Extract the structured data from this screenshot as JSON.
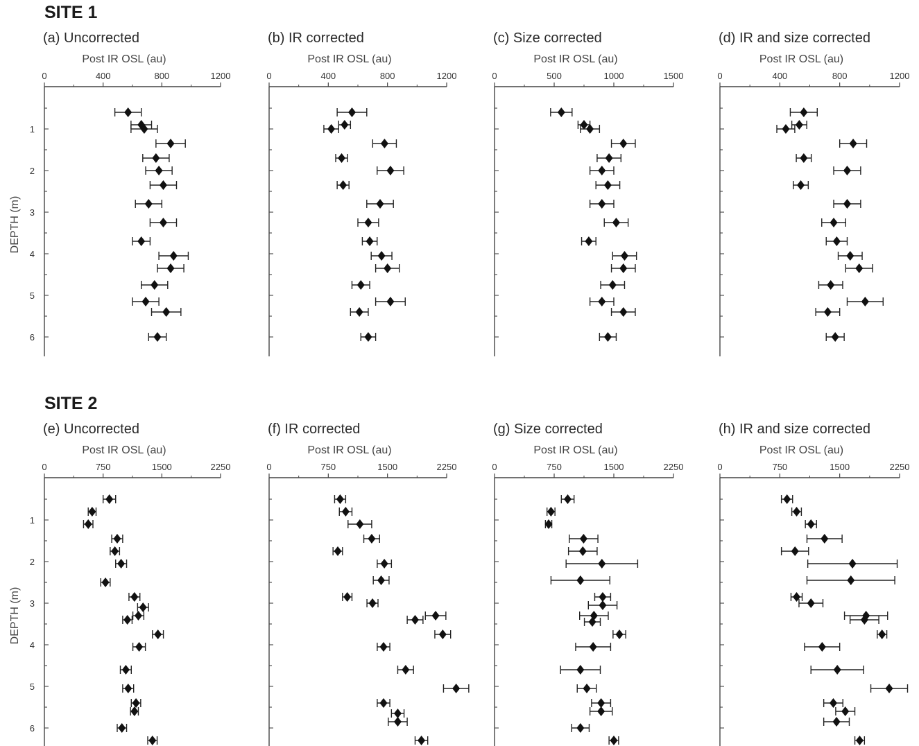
{
  "sites": [
    {
      "title": "SITE 1"
    },
    {
      "title": "SITE 2"
    }
  ],
  "chart_data": [
    {
      "type": "scatter",
      "site": "SITE 1",
      "title": "(a) Uncorrected",
      "xlabel": "Post IR OSL (au)",
      "ylabel": "DEPTH (m)",
      "xlim": [
        0,
        1200
      ],
      "xticks": [
        0,
        400,
        800,
        1200
      ],
      "ylim": [
        0,
        6.3
      ],
      "yticks": [
        1,
        2,
        3,
        4,
        5,
        6
      ],
      "y_inverted": true,
      "points": [
        {
          "depth": 0.6,
          "value": 570,
          "err": 90
        },
        {
          "depth": 0.9,
          "value": 660,
          "err": 70
        },
        {
          "depth": 1.0,
          "value": 680,
          "err": 90
        },
        {
          "depth": 1.35,
          "value": 860,
          "err": 100
        },
        {
          "depth": 1.7,
          "value": 760,
          "err": 90
        },
        {
          "depth": 2.0,
          "value": 780,
          "err": 90
        },
        {
          "depth": 2.35,
          "value": 810,
          "err": 90
        },
        {
          "depth": 2.8,
          "value": 710,
          "err": 90
        },
        {
          "depth": 3.25,
          "value": 810,
          "err": 90
        },
        {
          "depth": 3.7,
          "value": 660,
          "err": 60
        },
        {
          "depth": 4.05,
          "value": 880,
          "err": 100
        },
        {
          "depth": 4.35,
          "value": 860,
          "err": 90
        },
        {
          "depth": 4.75,
          "value": 750,
          "err": 90
        },
        {
          "depth": 5.15,
          "value": 690,
          "err": 90
        },
        {
          "depth": 5.4,
          "value": 830,
          "err": 100
        },
        {
          "depth": 6.0,
          "value": 770,
          "err": 60
        }
      ]
    },
    {
      "type": "scatter",
      "site": "SITE 1",
      "title": "(b) IR corrected",
      "xlabel": "Post IR OSL (au)",
      "ylabel": "",
      "xlim": [
        0,
        1200
      ],
      "xticks": [
        0,
        400,
        800,
        1200
      ],
      "ylim": [
        0,
        6.3
      ],
      "yticks": [
        1,
        2,
        3,
        4,
        5,
        6
      ],
      "y_inverted": true,
      "points": [
        {
          "depth": 0.6,
          "value": 560,
          "err": 100
        },
        {
          "depth": 0.9,
          "value": 510,
          "err": 40
        },
        {
          "depth": 1.0,
          "value": 420,
          "err": 50
        },
        {
          "depth": 1.35,
          "value": 780,
          "err": 80
        },
        {
          "depth": 1.7,
          "value": 490,
          "err": 40
        },
        {
          "depth": 2.0,
          "value": 820,
          "err": 90
        },
        {
          "depth": 2.35,
          "value": 500,
          "err": 40
        },
        {
          "depth": 2.8,
          "value": 750,
          "err": 90
        },
        {
          "depth": 3.25,
          "value": 670,
          "err": 70
        },
        {
          "depth": 3.7,
          "value": 680,
          "err": 50
        },
        {
          "depth": 4.05,
          "value": 760,
          "err": 70
        },
        {
          "depth": 4.35,
          "value": 800,
          "err": 80
        },
        {
          "depth": 4.75,
          "value": 620,
          "err": 60
        },
        {
          "depth": 5.15,
          "value": 820,
          "err": 100
        },
        {
          "depth": 5.4,
          "value": 610,
          "err": 60
        },
        {
          "depth": 6.0,
          "value": 670,
          "err": 50
        }
      ]
    },
    {
      "type": "scatter",
      "site": "SITE 1",
      "title": "(c) Size corrected",
      "xlabel": "Post IR OSL (au)",
      "ylabel": "",
      "xlim": [
        0,
        1500
      ],
      "xticks": [
        0,
        500,
        1000,
        1500
      ],
      "ylim": [
        0,
        6.3
      ],
      "yticks": [
        1,
        2,
        3,
        4,
        5,
        6
      ],
      "y_inverted": true,
      "points": [
        {
          "depth": 0.6,
          "value": 560,
          "err": 90
        },
        {
          "depth": 0.9,
          "value": 750,
          "err": 50
        },
        {
          "depth": 1.0,
          "value": 800,
          "err": 80
        },
        {
          "depth": 1.35,
          "value": 1080,
          "err": 100
        },
        {
          "depth": 1.7,
          "value": 960,
          "err": 100
        },
        {
          "depth": 2.0,
          "value": 900,
          "err": 100
        },
        {
          "depth": 2.35,
          "value": 950,
          "err": 100
        },
        {
          "depth": 2.8,
          "value": 900,
          "err": 100
        },
        {
          "depth": 3.25,
          "value": 1020,
          "err": 100
        },
        {
          "depth": 3.7,
          "value": 790,
          "err": 60
        },
        {
          "depth": 4.05,
          "value": 1090,
          "err": 100
        },
        {
          "depth": 4.35,
          "value": 1080,
          "err": 100
        },
        {
          "depth": 4.75,
          "value": 990,
          "err": 100
        },
        {
          "depth": 5.15,
          "value": 900,
          "err": 100
        },
        {
          "depth": 5.4,
          "value": 1080,
          "err": 100
        },
        {
          "depth": 6.0,
          "value": 950,
          "err": 70
        }
      ]
    },
    {
      "type": "scatter",
      "site": "SITE 1",
      "title": "(d) IR and size corrected",
      "xlabel": "Post IR OSL (au)",
      "ylabel": "",
      "xlim": [
        0,
        1200
      ],
      "xticks": [
        0,
        400,
        800,
        1200
      ],
      "ylim": [
        0,
        6.3
      ],
      "yticks": [
        1,
        2,
        3,
        4,
        5,
        6
      ],
      "y_inverted": true,
      "points": [
        {
          "depth": 0.6,
          "value": 560,
          "err": 90
        },
        {
          "depth": 0.9,
          "value": 530,
          "err": 50
        },
        {
          "depth": 1.0,
          "value": 440,
          "err": 60
        },
        {
          "depth": 1.35,
          "value": 890,
          "err": 90
        },
        {
          "depth": 1.7,
          "value": 560,
          "err": 50
        },
        {
          "depth": 2.0,
          "value": 850,
          "err": 90
        },
        {
          "depth": 2.35,
          "value": 540,
          "err": 50
        },
        {
          "depth": 2.8,
          "value": 850,
          "err": 90
        },
        {
          "depth": 3.25,
          "value": 760,
          "err": 80
        },
        {
          "depth": 3.7,
          "value": 780,
          "err": 70
        },
        {
          "depth": 4.05,
          "value": 870,
          "err": 80
        },
        {
          "depth": 4.35,
          "value": 930,
          "err": 90
        },
        {
          "depth": 4.75,
          "value": 740,
          "err": 80
        },
        {
          "depth": 5.15,
          "value": 970,
          "err": 120
        },
        {
          "depth": 5.4,
          "value": 720,
          "err": 80
        },
        {
          "depth": 6.0,
          "value": 770,
          "err": 60
        }
      ]
    },
    {
      "type": "scatter",
      "site": "SITE 2",
      "title": "(e) Uncorrected",
      "xlabel": "Post IR OSL (au)",
      "ylabel": "DEPTH (m)",
      "xlim": [
        0,
        2250
      ],
      "xticks": [
        0,
        750,
        1500,
        2250
      ],
      "ylim": [
        0,
        6.3
      ],
      "yticks": [
        1,
        2,
        3,
        4,
        5,
        6
      ],
      "y_inverted": true,
      "points": [
        {
          "depth": 0.5,
          "value": 830,
          "err": 80
        },
        {
          "depth": 0.8,
          "value": 610,
          "err": 50
        },
        {
          "depth": 1.1,
          "value": 560,
          "err": 60
        },
        {
          "depth": 1.45,
          "value": 930,
          "err": 70
        },
        {
          "depth": 1.75,
          "value": 900,
          "err": 60
        },
        {
          "depth": 2.05,
          "value": 980,
          "err": 70
        },
        {
          "depth": 2.5,
          "value": 780,
          "err": 60
        },
        {
          "depth": 2.85,
          "value": 1150,
          "err": 70
        },
        {
          "depth": 3.1,
          "value": 1260,
          "err": 70
        },
        {
          "depth": 3.3,
          "value": 1200,
          "err": 70
        },
        {
          "depth": 3.4,
          "value": 1060,
          "err": 60
        },
        {
          "depth": 3.75,
          "value": 1450,
          "err": 70
        },
        {
          "depth": 4.05,
          "value": 1210,
          "err": 80
        },
        {
          "depth": 4.6,
          "value": 1040,
          "err": 70
        },
        {
          "depth": 5.05,
          "value": 1070,
          "err": 70
        },
        {
          "depth": 5.4,
          "value": 1170,
          "err": 60
        },
        {
          "depth": 5.6,
          "value": 1150,
          "err": 50
        },
        {
          "depth": 6.0,
          "value": 990,
          "err": 60
        },
        {
          "depth": 6.3,
          "value": 1380,
          "err": 60
        }
      ]
    },
    {
      "type": "scatter",
      "site": "SITE 2",
      "title": "(f) IR corrected",
      "xlabel": "Post IR OSL (au)",
      "ylabel": "",
      "xlim": [
        0,
        2250
      ],
      "xticks": [
        0,
        750,
        1500,
        2250
      ],
      "ylim": [
        0,
        6.3
      ],
      "yticks": [
        1,
        2,
        3,
        4,
        5,
        6
      ],
      "y_inverted": true,
      "points": [
        {
          "depth": 0.5,
          "value": 900,
          "err": 70
        },
        {
          "depth": 0.8,
          "value": 970,
          "err": 80
        },
        {
          "depth": 1.1,
          "value": 1150,
          "err": 150
        },
        {
          "depth": 1.45,
          "value": 1300,
          "err": 100
        },
        {
          "depth": 1.75,
          "value": 870,
          "err": 60
        },
        {
          "depth": 2.05,
          "value": 1460,
          "err": 90
        },
        {
          "depth": 2.45,
          "value": 1420,
          "err": 100
        },
        {
          "depth": 2.85,
          "value": 990,
          "err": 60
        },
        {
          "depth": 3.0,
          "value": 1310,
          "err": 70
        },
        {
          "depth": 3.3,
          "value": 2110,
          "err": 130
        },
        {
          "depth": 3.4,
          "value": 1850,
          "err": 100
        },
        {
          "depth": 3.75,
          "value": 2200,
          "err": 100
        },
        {
          "depth": 4.05,
          "value": 1450,
          "err": 80
        },
        {
          "depth": 4.6,
          "value": 1730,
          "err": 100
        },
        {
          "depth": 5.05,
          "value": 2370,
          "err": 160
        },
        {
          "depth": 5.4,
          "value": 1450,
          "err": 80
        },
        {
          "depth": 5.65,
          "value": 1630,
          "err": 80
        },
        {
          "depth": 5.85,
          "value": 1630,
          "err": 120
        },
        {
          "depth": 6.3,
          "value": 1930,
          "err": 80
        }
      ]
    },
    {
      "type": "scatter",
      "site": "SITE 2",
      "title": "(g) Size corrected",
      "xlabel": "Post IR OSL (au)",
      "ylabel": "",
      "xlim": [
        0,
        2250
      ],
      "xticks": [
        0,
        750,
        1500,
        2250
      ],
      "ylim": [
        0,
        6.3
      ],
      "yticks": [
        1,
        2,
        3,
        4,
        5,
        6
      ],
      "y_inverted": true,
      "points": [
        {
          "depth": 0.5,
          "value": 920,
          "err": 80
        },
        {
          "depth": 0.8,
          "value": 710,
          "err": 50
        },
        {
          "depth": 1.1,
          "value": 680,
          "err": 40
        },
        {
          "depth": 1.45,
          "value": 1120,
          "err": 180
        },
        {
          "depth": 1.75,
          "value": 1110,
          "err": 180
        },
        {
          "depth": 2.05,
          "value": 1350,
          "err": 450
        },
        {
          "depth": 2.45,
          "value": 1080,
          "err": 370
        },
        {
          "depth": 2.85,
          "value": 1360,
          "err": 100
        },
        {
          "depth": 3.05,
          "value": 1360,
          "err": 180
        },
        {
          "depth": 3.3,
          "value": 1250,
          "err": 180
        },
        {
          "depth": 3.45,
          "value": 1230,
          "err": 100
        },
        {
          "depth": 3.75,
          "value": 1570,
          "err": 80
        },
        {
          "depth": 4.05,
          "value": 1240,
          "err": 220
        },
        {
          "depth": 4.6,
          "value": 1080,
          "err": 250
        },
        {
          "depth": 5.05,
          "value": 1160,
          "err": 120
        },
        {
          "depth": 5.4,
          "value": 1340,
          "err": 120
        },
        {
          "depth": 5.6,
          "value": 1340,
          "err": 140
        },
        {
          "depth": 6.0,
          "value": 1080,
          "err": 110
        },
        {
          "depth": 6.3,
          "value": 1500,
          "err": 60
        }
      ]
    },
    {
      "type": "scatter",
      "site": "SITE 2",
      "title": "(h) IR and size corrected",
      "xlabel": "Post IR OSL (au)",
      "ylabel": "",
      "xlim": [
        0,
        2250
      ],
      "xticks": [
        0,
        750,
        1500,
        2250
      ],
      "ylim": [
        0,
        6.3
      ],
      "yticks": [
        1,
        2,
        3,
        4,
        5,
        6
      ],
      "y_inverted": true,
      "points": [
        {
          "depth": 0.5,
          "value": 840,
          "err": 70
        },
        {
          "depth": 0.8,
          "value": 960,
          "err": 60
        },
        {
          "depth": 1.1,
          "value": 1140,
          "err": 70
        },
        {
          "depth": 1.45,
          "value": 1310,
          "err": 220
        },
        {
          "depth": 1.75,
          "value": 940,
          "err": 170
        },
        {
          "depth": 2.05,
          "value": 1660,
          "err": 560
        },
        {
          "depth": 2.45,
          "value": 1640,
          "err": 550
        },
        {
          "depth": 2.85,
          "value": 960,
          "err": 70
        },
        {
          "depth": 3.0,
          "value": 1140,
          "err": 150
        },
        {
          "depth": 3.3,
          "value": 1830,
          "err": 270
        },
        {
          "depth": 3.4,
          "value": 1810,
          "err": 180
        },
        {
          "depth": 3.75,
          "value": 2030,
          "err": 60
        },
        {
          "depth": 4.05,
          "value": 1280,
          "err": 220
        },
        {
          "depth": 4.6,
          "value": 1470,
          "err": 330
        },
        {
          "depth": 5.05,
          "value": 2120,
          "err": 230
        },
        {
          "depth": 5.4,
          "value": 1420,
          "err": 120
        },
        {
          "depth": 5.6,
          "value": 1570,
          "err": 120
        },
        {
          "depth": 5.85,
          "value": 1460,
          "err": 160
        },
        {
          "depth": 6.3,
          "value": 1750,
          "err": 60
        }
      ]
    }
  ]
}
